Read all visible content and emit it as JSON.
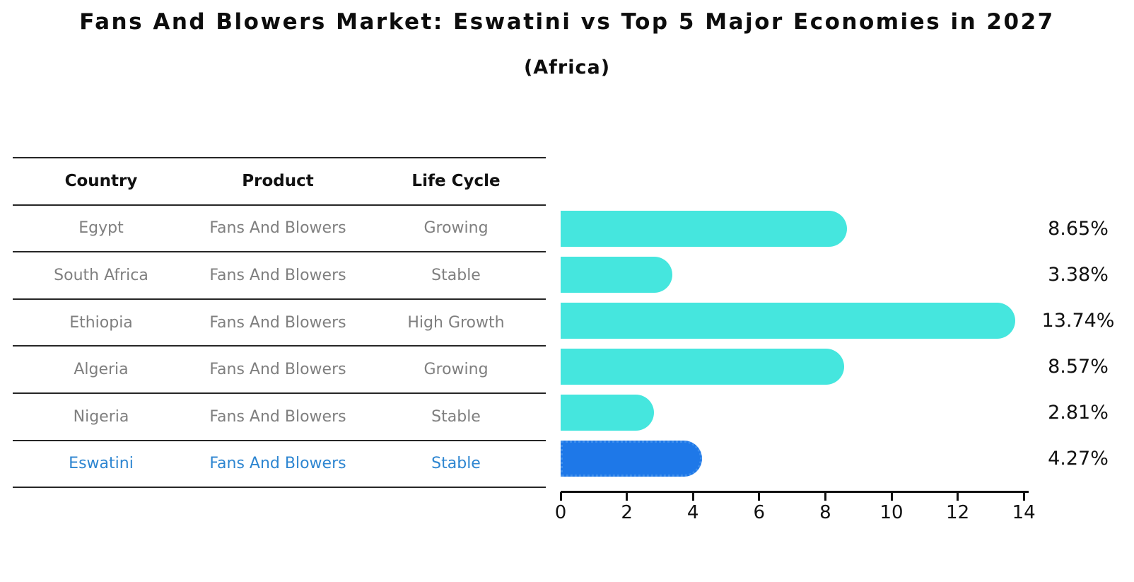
{
  "title": "Fans And Blowers Market: Eswatini vs Top 5 Major Economies in 2027",
  "subtitle": "(Africa)",
  "table": {
    "headers": [
      "Country",
      "Product",
      "Life Cycle"
    ],
    "rows": [
      {
        "country": "Egypt",
        "product": "Fans And Blowers",
        "life_cycle": "Growing",
        "highlight": false
      },
      {
        "country": "South Africa",
        "product": "Fans And Blowers",
        "life_cycle": "Stable",
        "highlight": false
      },
      {
        "country": "Ethiopia",
        "product": "Fans And Blowers",
        "life_cycle": "High Growth",
        "highlight": false
      },
      {
        "country": "Algeria",
        "product": "Fans And Blowers",
        "life_cycle": "Growing",
        "highlight": false
      },
      {
        "country": "Nigeria",
        "product": "Fans And Blowers",
        "life_cycle": "Stable",
        "highlight": false
      },
      {
        "country": "Eswatini",
        "product": "Fans And Blowers",
        "life_cycle": "Stable",
        "highlight": true
      }
    ]
  },
  "chart_data": {
    "type": "bar",
    "orientation": "horizontal",
    "title": "Fans And Blowers Market: Eswatini vs Top 5 Major Economies in 2027 (Africa)",
    "categories": [
      "Egypt",
      "South Africa",
      "Ethiopia",
      "Algeria",
      "Nigeria",
      "Eswatini"
    ],
    "values": [
      8.65,
      3.38,
      13.74,
      8.57,
      2.81,
      4.27
    ],
    "value_labels": [
      "8.65%",
      "3.38%",
      "13.74%",
      "8.57%",
      "2.81%",
      "4.27%"
    ],
    "x_ticks": [
      0,
      2,
      4,
      6,
      8,
      10,
      12,
      14
    ],
    "xlim": [
      0,
      14.2
    ],
    "grid": false,
    "legend": false,
    "highlight_index": 5
  },
  "colors": {
    "bar_color": "#45E6DE",
    "highlight_bar_color": "#1E78E8",
    "highlight_bar_edge": "#3E8EEC",
    "highlight_text": "#2E86D1",
    "body_text": "#7f7f7f",
    "header_text": "#111111"
  }
}
